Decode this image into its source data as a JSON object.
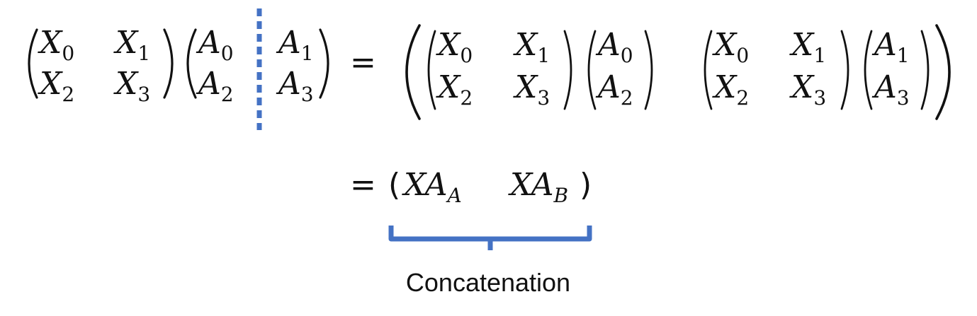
{
  "equation": {
    "matrix_X": {
      "a": "X",
      "as": "0",
      "b": "X",
      "bs": "1",
      "c": "X",
      "cs": "2",
      "d": "X",
      "ds": "3"
    },
    "matrix_A": {
      "a": "A",
      "as": "0",
      "b": "A",
      "bs": "1",
      "c": "A",
      "cs": "2",
      "d": "A",
      "ds": "3"
    },
    "col_A_left": {
      "a": "A",
      "as": "0",
      "c": "A",
      "cs": "2"
    },
    "col_A_right": {
      "a": "A",
      "as": "1",
      "c": "A",
      "cs": "3"
    },
    "equals": "=",
    "result": {
      "open": "(",
      "term1": "XA",
      "term1_sub": "A",
      "term2": "XA",
      "term2_sub": "B",
      "close": ")"
    }
  },
  "caption": "Concatenation",
  "colors": {
    "accent": "#4472C4",
    "text": "#111111",
    "background": "#ffffff"
  }
}
